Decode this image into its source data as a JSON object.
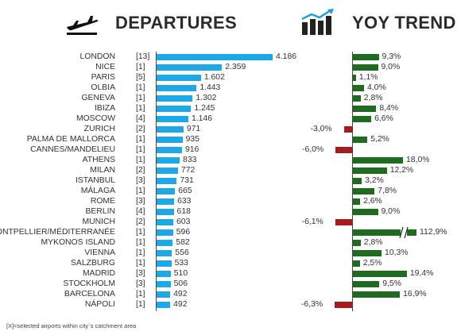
{
  "header": {
    "departures_title": "DEPARTURES",
    "trend_title": "YOY TREND",
    "departures_icon": "plane-takeoff-icon",
    "trend_icon": "bar-trend-arrow-icon"
  },
  "colors": {
    "departures_bar": "#1fa8e6",
    "trend_positive": "#1f6b1f",
    "trend_negative": "#a51c1c"
  },
  "footnote": "[X]=selected airports within city`s catchment area",
  "chart_data": [
    {
      "type": "bar",
      "orientation": "horizontal",
      "title": "DEPARTURES",
      "categories": [
        "LONDON",
        "NICE",
        "PARIS",
        "OLBIA",
        "GENEVA",
        "IBIZA",
        "MOSCOW",
        "ZURICH",
        "PALMA DE MALLORCA",
        "CANNES/MANDELIEU",
        "ATHENS",
        "MILAN",
        "ISTANBUL",
        "MÁLAGA",
        "ROME",
        "BERLIN",
        "MUNICH",
        "MONTPELLIER/MÉDITERRANÉE",
        "MYKONOS ISLAND",
        "VIENNA",
        "SALZBURG",
        "MADRID",
        "STOCKHOLM",
        "BARCELONA",
        "NÁPOLI"
      ],
      "airport_counts": [
        "[13]",
        "[1]",
        "[5]",
        "[1]",
        "[1]",
        "[1]",
        "[4]",
        "[2]",
        "[1]",
        "[1]",
        "[1]",
        "[2]",
        "[3]",
        "[1]",
        "[3]",
        "[4]",
        "[2]",
        "[1]",
        "[1]",
        "[1]",
        "[1]",
        "[3]",
        "[3]",
        "[1]",
        "[1]"
      ],
      "values": [
        4186,
        2359,
        1602,
        1443,
        1302,
        1245,
        1146,
        971,
        935,
        916,
        833,
        772,
        731,
        665,
        633,
        618,
        603,
        596,
        582,
        556,
        533,
        510,
        506,
        492,
        492
      ],
      "labels": [
        "4.186",
        "2.359",
        "1.602",
        "1.443",
        "1.302",
        "1.245",
        "1.146",
        "971",
        "935",
        "916",
        "833",
        "772",
        "731",
        "665",
        "633",
        "618",
        "603",
        "596",
        "582",
        "556",
        "533",
        "510",
        "506",
        "492",
        "492"
      ]
    },
    {
      "type": "bar",
      "orientation": "horizontal",
      "title": "YOY TREND",
      "categories": [
        "LONDON",
        "NICE",
        "PARIS",
        "OLBIA",
        "GENEVA",
        "IBIZA",
        "MOSCOW",
        "ZURICH",
        "PALMA DE MALLORCA",
        "CANNES/MANDELIEU",
        "ATHENS",
        "MILAN",
        "ISTANBUL",
        "MÁLAGA",
        "ROME",
        "BERLIN",
        "MUNICH",
        "MONTPELLIER/MÉDITERRANÉE",
        "MYKONOS ISLAND",
        "VIENNA",
        "SALZBURG",
        "MADRID",
        "STOCKHOLM",
        "BARCELONA",
        "NÁPOLI"
      ],
      "values": [
        9.3,
        9.0,
        1.1,
        4.0,
        2.8,
        8.4,
        6.6,
        -3.0,
        5.2,
        -6.0,
        18.0,
        12.2,
        3.2,
        7.8,
        2.6,
        9.0,
        -6.1,
        112.9,
        2.8,
        10.3,
        2.5,
        19.4,
        9.5,
        16.9,
        -6.3
      ],
      "labels": [
        "9,3%",
        "9,0%",
        "1,1%",
        "4,0%",
        "2,8%",
        "8,4%",
        "6,6%",
        "-3,0%",
        "5,2%",
        "-6,0%",
        "18,0%",
        "12,2%",
        "3,2%",
        "7,8%",
        "2,6%",
        "9,0%",
        "-6,1%",
        "112,9%",
        "2,8%",
        "10,3%",
        "2,5%",
        "19,4%",
        "9,5%",
        "16,9%",
        "-6,3%"
      ],
      "axis_break": {
        "category": "MONTPELLIER/MÉDITERRANÉE"
      }
    }
  ]
}
